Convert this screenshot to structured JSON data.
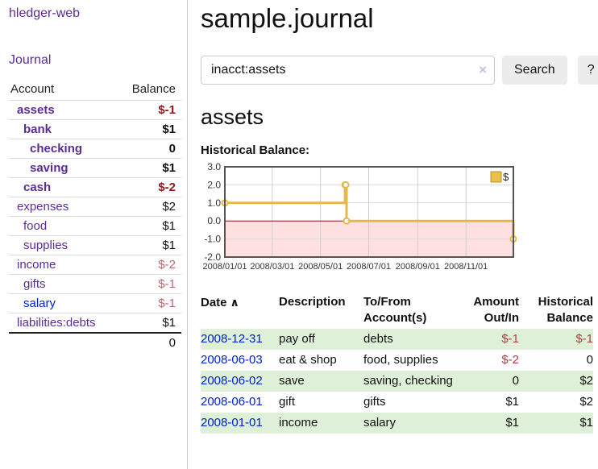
{
  "app": {
    "title": "hledger-web"
  },
  "sidebar": {
    "nav_journal": "Journal",
    "table": {
      "account_header": "Account",
      "balance_header": "Balance",
      "rows": [
        {
          "name": "assets",
          "balance": "$-1"
        },
        {
          "name": "bank",
          "balance": "$1"
        },
        {
          "name": "checking",
          "balance": "0"
        },
        {
          "name": "saving",
          "balance": "$1"
        },
        {
          "name": "cash",
          "balance": "$-2"
        },
        {
          "name": "expenses",
          "balance": "$2"
        },
        {
          "name": "food",
          "balance": "$1"
        },
        {
          "name": "supplies",
          "balance": "$1"
        },
        {
          "name": "income",
          "balance": "$-2"
        },
        {
          "name": "gifts",
          "balance": "$-1"
        },
        {
          "name": "salary",
          "balance": "$-1"
        },
        {
          "name": "liabilities:debts",
          "balance": "$1"
        }
      ],
      "total": "0"
    }
  },
  "main": {
    "title": "sample.journal",
    "search": {
      "value": "inacct:assets",
      "clear_icon": "×",
      "search_label": "Search",
      "help_label": "?"
    },
    "heading": "assets",
    "chart_label": "Historical Balance:",
    "register": {
      "sort_icon": "∧",
      "headers": {
        "date": "Date",
        "description": "Description",
        "accounts": "To/From Account(s)",
        "amount": "Amount Out/In",
        "balance": "Historical Balance"
      },
      "rows": [
        {
          "date": "2008-12-31",
          "description": "pay off",
          "accounts": "debts",
          "amount": "$-1",
          "balance": "$-1"
        },
        {
          "date": "2008-06-03",
          "description": "eat & shop",
          "accounts": "food, supplies",
          "amount": "$-2",
          "balance": "0"
        },
        {
          "date": "2008-06-02",
          "description": "save",
          "accounts": "saving, checking",
          "amount": "0",
          "balance": "$2"
        },
        {
          "date": "2008-06-01",
          "description": "gift",
          "accounts": "gifts",
          "amount": "$1",
          "balance": "$2"
        },
        {
          "date": "2008-01-01",
          "description": "income",
          "accounts": "salary",
          "amount": "$1",
          "balance": "$1"
        }
      ]
    }
  },
  "chart_data": {
    "type": "line",
    "step": true,
    "title": "Historical Balance:",
    "legend": "$",
    "legend_position": "top-right",
    "grid": true,
    "x_range": [
      "2008-01-01",
      "2008-12-31"
    ],
    "ylim": [
      -2,
      3
    ],
    "yticks": [
      "3.0",
      "2.0",
      "1.0",
      "0.0",
      "-1.0",
      "-2.0"
    ],
    "xticks": [
      "2008/01/01",
      "2008/03/01",
      "2008/05/01",
      "2008/07/01",
      "2008/09/01",
      "2008/11/01"
    ],
    "points": [
      [
        "2008-01-01",
        1
      ],
      [
        "2008-06-01",
        2
      ],
      [
        "2008-06-02",
        2
      ],
      [
        "2008-06-03",
        0
      ],
      [
        "2008-12-31",
        -1
      ]
    ],
    "colors": {
      "line": "#e3b94b",
      "negative_fill": "#ffe0e0",
      "zero_line": "#8e1818",
      "legend_fill": "#e8c04a",
      "legend_border": "#b8922e"
    }
  }
}
